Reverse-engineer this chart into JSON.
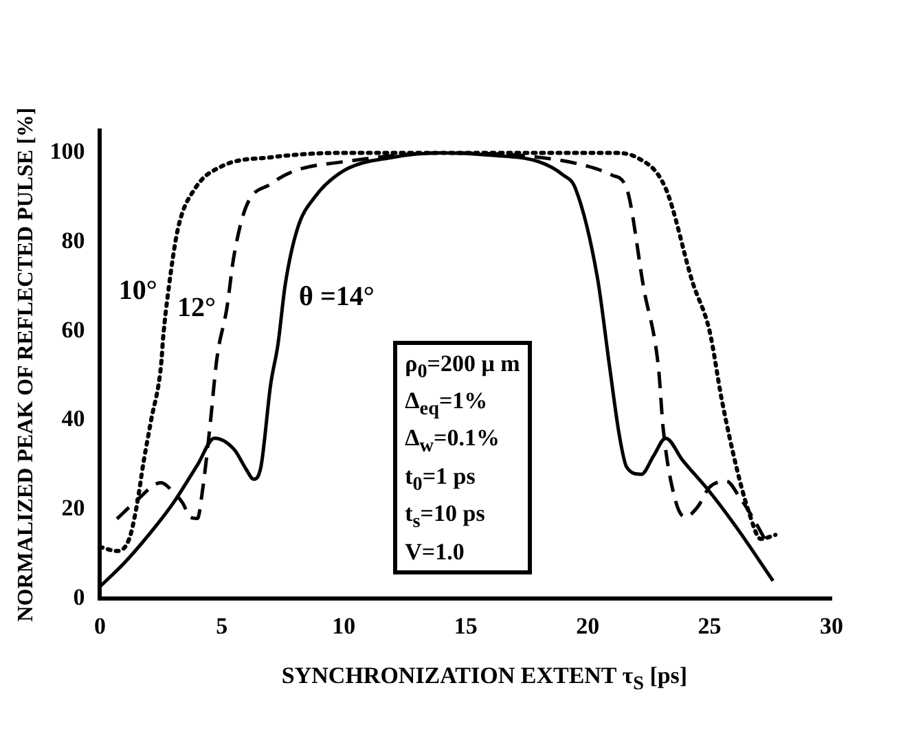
{
  "chart_data": {
    "type": "line",
    "xlabel": "SYNCHRONIZATION EXTENT  τ$_{S}$ [ps]",
    "ylabel": "NORMALIZED PEAK OF REFLECTED PULSE [%]",
    "xlim": [
      0,
      30
    ],
    "xticks": [
      0,
      5,
      10,
      15,
      20,
      25,
      30
    ],
    "ylim": [
      0,
      105
    ],
    "yticks": [
      0,
      20,
      40,
      60,
      80,
      100
    ],
    "grid": false,
    "legend": false,
    "marker": "none",
    "series": [
      {
        "name": "10°",
        "color": "#000000",
        "line_style": "dotted",
        "x": [
          0,
          0.7,
          1.2,
          1.5,
          1.8,
          2.1,
          2.5,
          2.6,
          2.8,
          3.2,
          3.9,
          5,
          7,
          10,
          14,
          18,
          21,
          22,
          23.2,
          24.3,
          25,
          25.5,
          26.1,
          26.6,
          27.1,
          27.7
        ],
        "values": [
          11.6,
          10.7,
          13.4,
          20.5,
          31,
          40,
          52,
          59,
          68.8,
          83,
          92,
          97,
          99,
          100,
          100,
          100,
          100,
          99,
          92,
          71,
          60,
          44.6,
          29.5,
          19.6,
          13.4,
          14.3
        ]
      },
      {
        "name": "12°",
        "color": "#000000",
        "line_style": "dashed",
        "x": [
          0.7,
          1.5,
          2.5,
          3,
          3.4,
          3.7,
          4,
          4.2,
          4.5,
          4.8,
          5.2,
          5.5,
          6,
          7,
          8,
          10,
          14,
          18,
          20,
          21,
          21.6,
          22.3,
          22.9,
          23.1,
          23.6,
          24,
          24.5,
          25,
          25.7,
          26.2,
          26.8,
          27.3
        ],
        "values": [
          17.9,
          22,
          26,
          24,
          21.4,
          18.3,
          18,
          24,
          38,
          54,
          65,
          77,
          88,
          93,
          96,
          98,
          100,
          99,
          97,
          95,
          92,
          69.6,
          52,
          38,
          22,
          18.3,
          20.5,
          25,
          26.3,
          23,
          17.9,
          13
        ]
      },
      {
        "name": "θ =14°",
        "color": "#000000",
        "line_style": "solid",
        "x": [
          0,
          1,
          2,
          3,
          4,
          4.7,
          5.5,
          6,
          6.3,
          6.6,
          7,
          7.3,
          7.6,
          8.1,
          8.8,
          10,
          12,
          14,
          16,
          18,
          19,
          19.5,
          20.4,
          20.9,
          21.3,
          21.6,
          22.2,
          22.7,
          23.2,
          23.9,
          25,
          26.1,
          27.6
        ],
        "values": [
          2.7,
          8,
          14.3,
          21.4,
          30,
          36,
          33.5,
          29,
          26.8,
          29.5,
          48,
          57,
          70.5,
          83,
          90,
          96,
          99,
          100,
          99.5,
          98,
          95,
          92,
          72,
          52,
          36.6,
          29.5,
          27.9,
          32,
          36,
          31,
          24,
          16,
          4
        ]
      }
    ],
    "annotations": [
      "ρ$_{0}$=200  μ m",
      "Δ$_{eq}$=1%",
      "Δ$_{w}$=0.1%",
      "t$_{0}$=1 ps",
      "t$_{s}$=10 ps",
      "V=1.0"
    ]
  }
}
